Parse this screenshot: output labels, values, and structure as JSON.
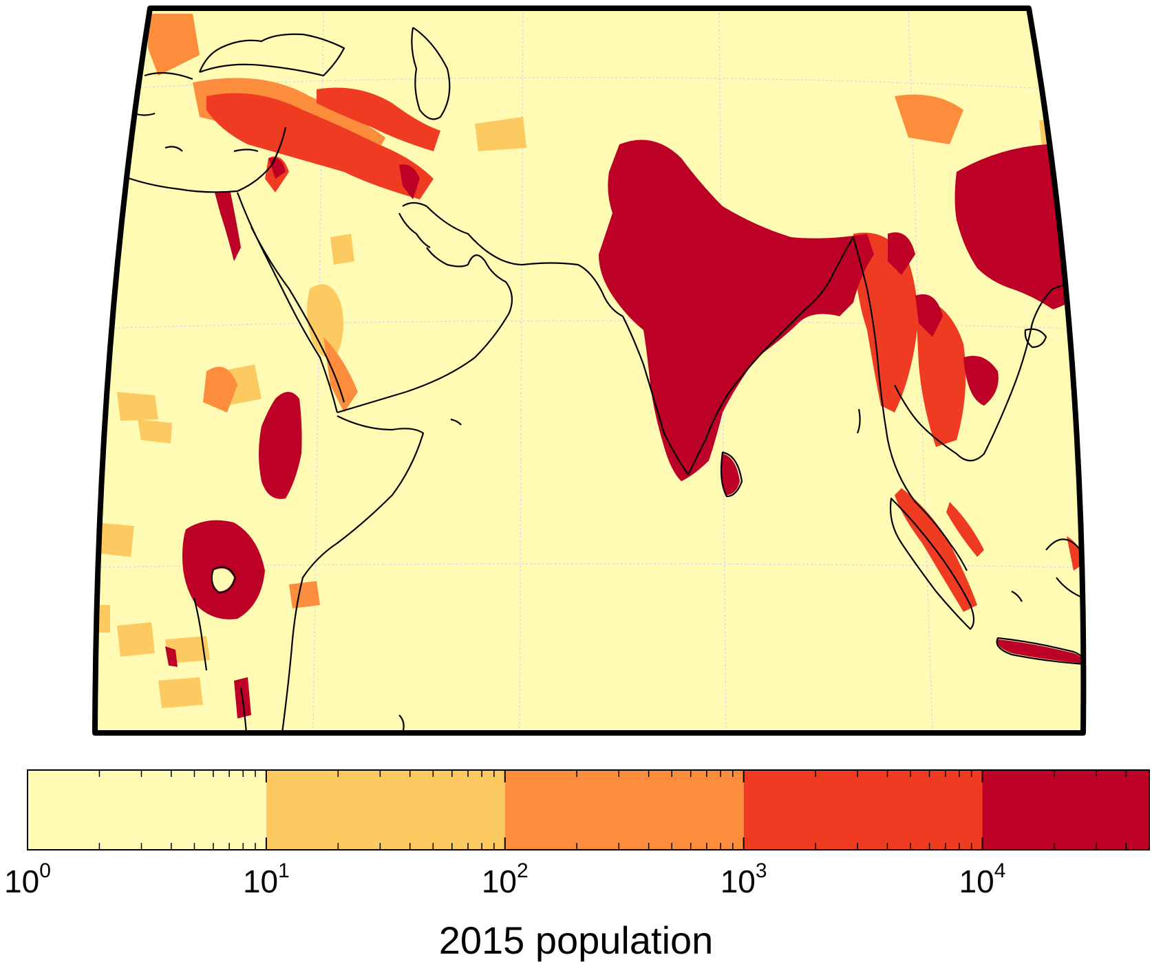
{
  "map": {
    "projection": "conic",
    "gridlines": true,
    "coastlines": true,
    "colors": {
      "background": "#FFFBB4",
      "coastline": "#000000",
      "frame": "#000000",
      "grid": "#DCDCDC"
    }
  },
  "colorbar": {
    "title": "2015 population",
    "scale": "log",
    "range": [
      1,
      50000
    ],
    "bins": [
      {
        "from": 1,
        "to": 10,
        "color": "#FFFBB4"
      },
      {
        "from": 10,
        "to": 100,
        "color": "#FDC961"
      },
      {
        "from": 100,
        "to": 1000,
        "color": "#FC8D3C"
      },
      {
        "from": 1000,
        "to": 10000,
        "color": "#EF3B22"
      },
      {
        "from": 10000,
        "to": 50000,
        "color": "#BC0026"
      }
    ],
    "ticks": [
      {
        "base": "10",
        "exp": "0"
      },
      {
        "base": "10",
        "exp": "1"
      },
      {
        "base": "10",
        "exp": "2"
      },
      {
        "base": "10",
        "exp": "3"
      },
      {
        "base": "10",
        "exp": "4"
      }
    ]
  }
}
